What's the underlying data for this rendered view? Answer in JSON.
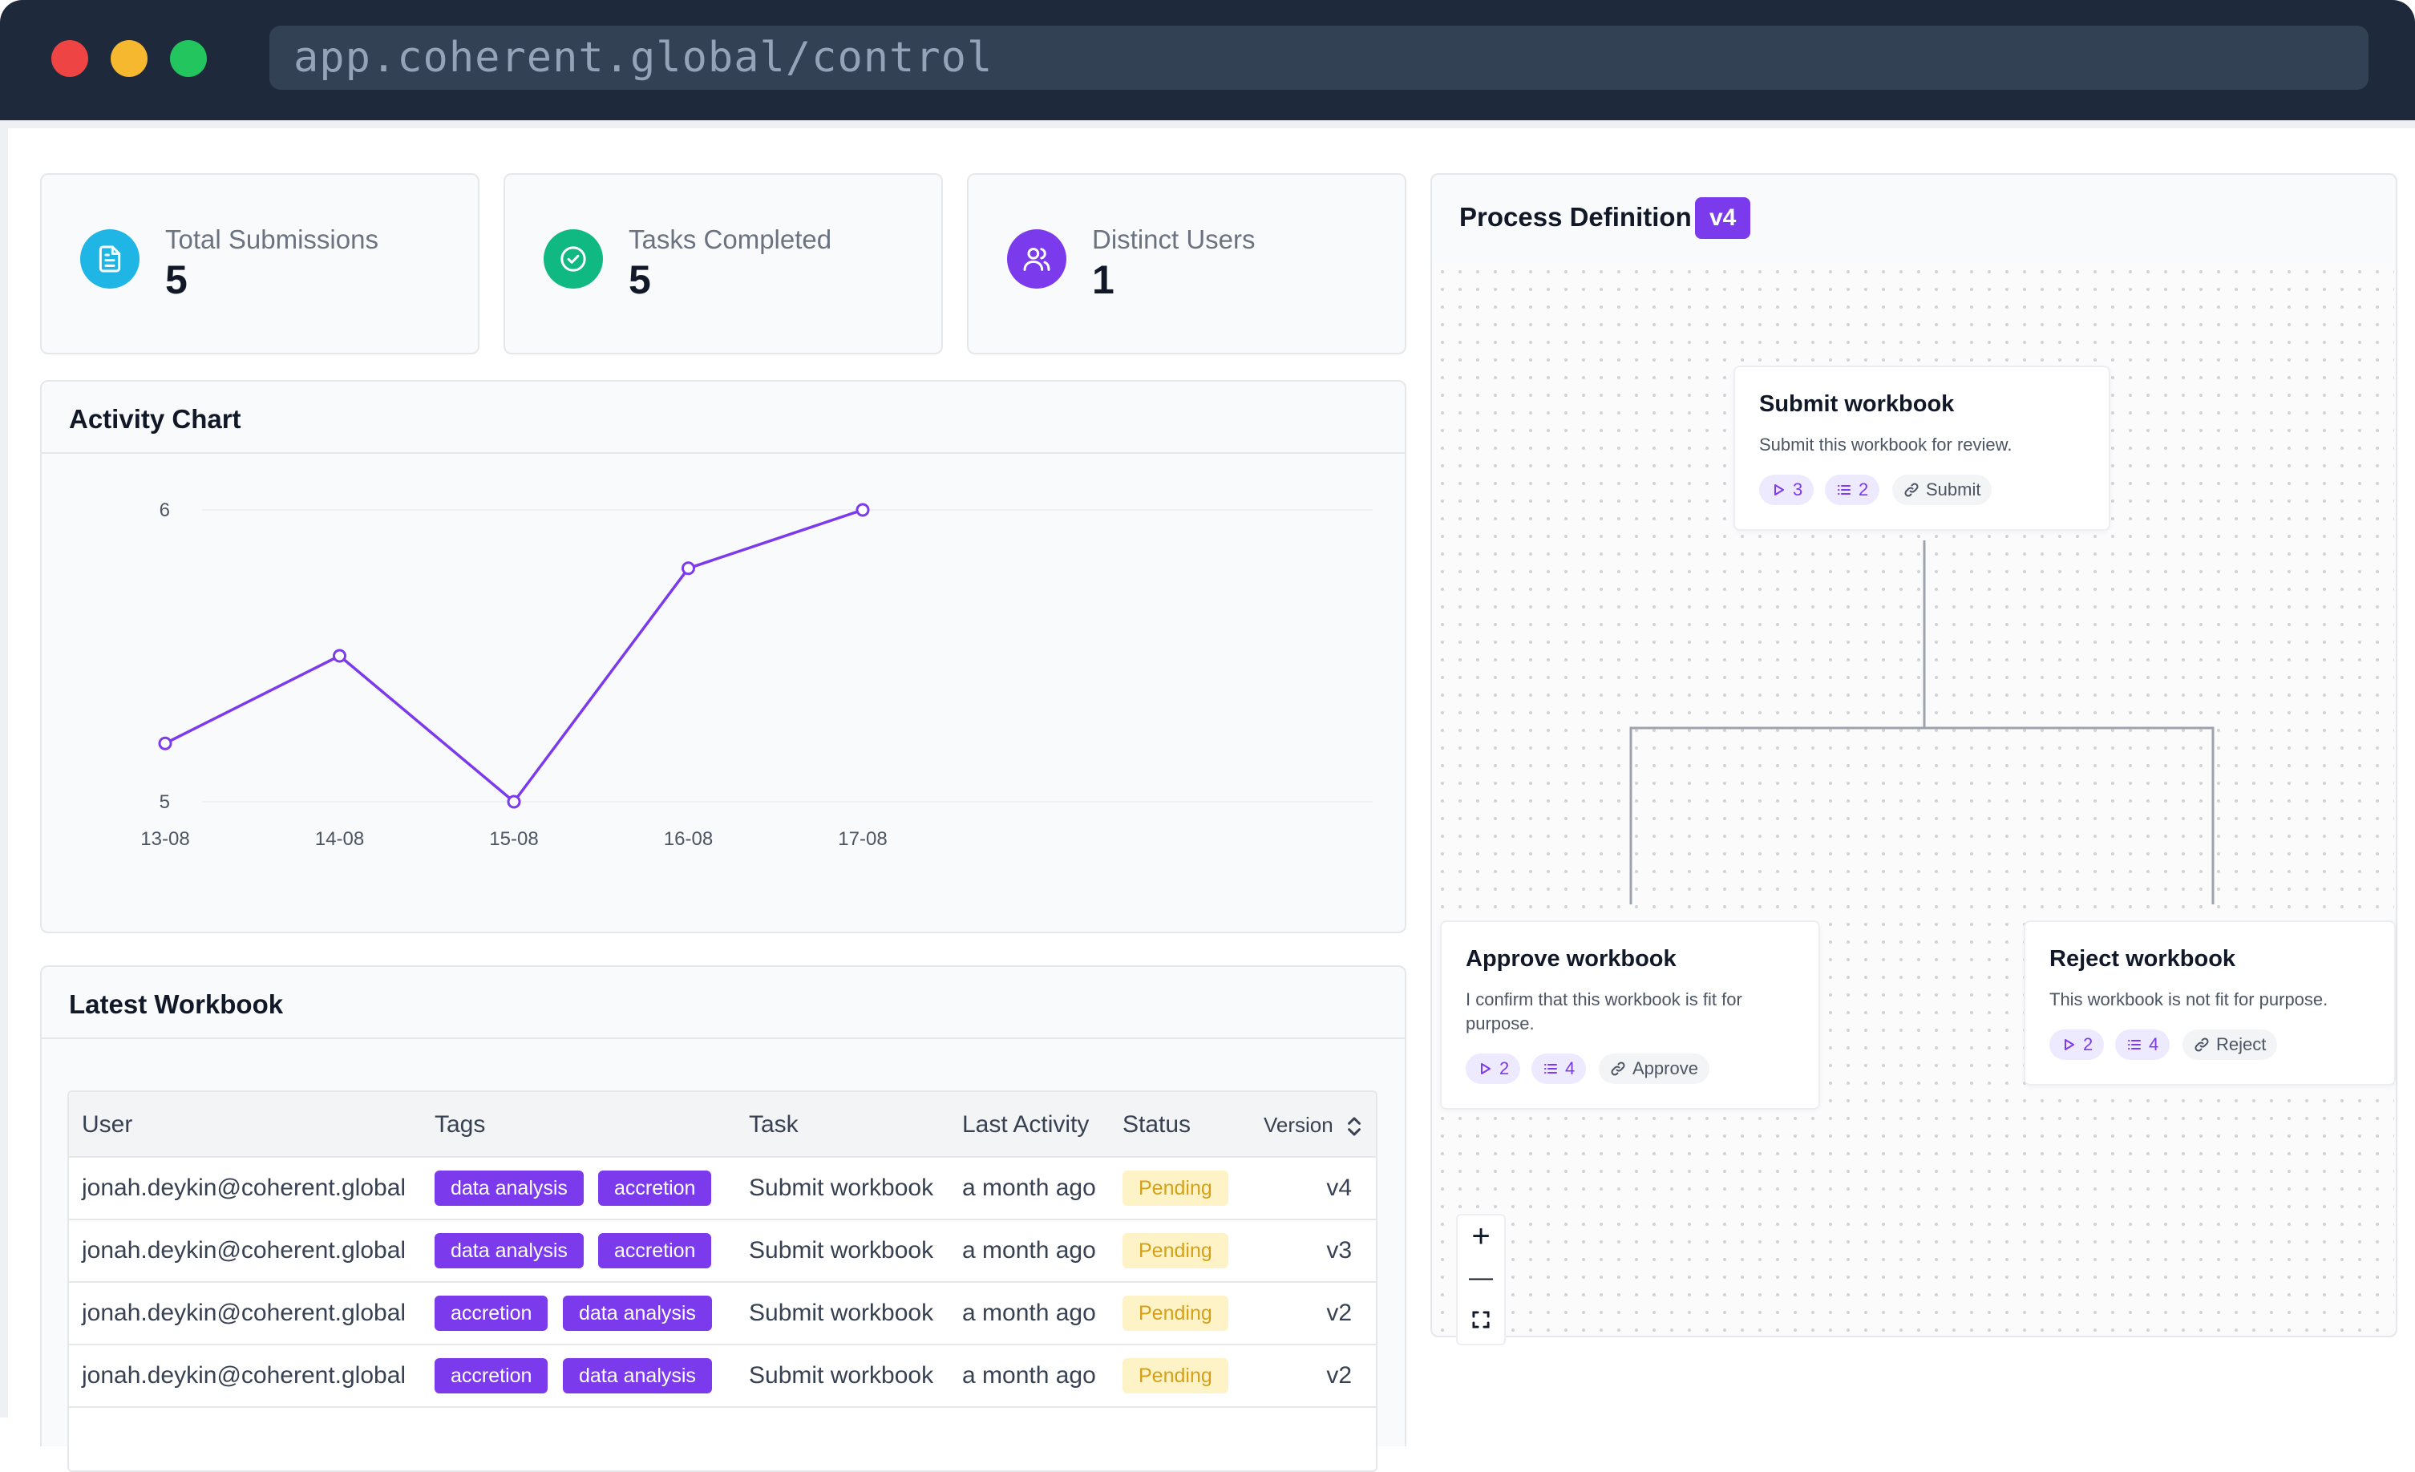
{
  "browser": {
    "url": "app.coherent.global/control"
  },
  "stats": [
    {
      "label": "Total Submissions",
      "value": "5",
      "icon": "document-icon",
      "color": "#1fb6e6"
    },
    {
      "label": "Tasks Completed",
      "value": "5",
      "icon": "check-circle-icon",
      "color": "#10b981"
    },
    {
      "label": "Distinct Users",
      "value": "1",
      "icon": "users-icon",
      "color": "#7c3aed"
    }
  ],
  "activity": {
    "title": "Activity Chart"
  },
  "chart_data": {
    "type": "line",
    "title": "Activity Chart",
    "categories": [
      "13-08",
      "14-08",
      "15-08",
      "16-08",
      "17-08"
    ],
    "series": [
      {
        "values": [
          5.2,
          5.5,
          5.0,
          5.8,
          6.0
        ]
      }
    ],
    "ylim": [
      5,
      6
    ],
    "yticks": [
      "5",
      "6"
    ],
    "grid": true,
    "color": "#7c3aed"
  },
  "workbook": {
    "title": "Latest Workbook",
    "headers": {
      "user": "User",
      "tags": "Tags",
      "task": "Task",
      "last_activity": "Last Activity",
      "status": "Status",
      "version": "Version"
    },
    "rows": [
      {
        "user": "jonah.deykin@coherent.global",
        "tag1": "data analysis",
        "tag2": "accretion",
        "task": "Submit workbook",
        "last": "a month ago",
        "status": "Pending",
        "version": "v4"
      },
      {
        "user": "jonah.deykin@coherent.global",
        "tag1": "data analysis",
        "tag2": "accretion",
        "task": "Submit workbook",
        "last": "a month ago",
        "status": "Pending",
        "version": "v3"
      },
      {
        "user": "jonah.deykin@coherent.global",
        "tag1": "accretion",
        "tag2": "data analysis",
        "task": "Submit workbook",
        "last": "a month ago",
        "status": "Pending",
        "version": "v2"
      },
      {
        "user": "jonah.deykin@coherent.global",
        "tag1": "accretion",
        "tag2": "data analysis",
        "task": "Submit workbook",
        "last": "a month ago",
        "status": "Pending",
        "version": "v2"
      }
    ]
  },
  "process": {
    "title": "Process Definition",
    "version": "v4",
    "nodes": {
      "submit": {
        "title": "Submit workbook",
        "desc": "Submit this workbook for review.",
        "runs": "3",
        "fields": "2",
        "action": "Submit"
      },
      "approve": {
        "title": "Approve workbook",
        "desc1": "I confirm that this workbook is fit for",
        "desc2": "purpose.",
        "runs": "2",
        "fields": "4",
        "action": "Approve"
      },
      "reject": {
        "title": "Reject workbook",
        "desc": "This workbook is not fit for purpose.",
        "runs": "2",
        "fields": "4",
        "action": "Reject"
      }
    },
    "zoom": {
      "in": "+",
      "out": "—"
    }
  }
}
